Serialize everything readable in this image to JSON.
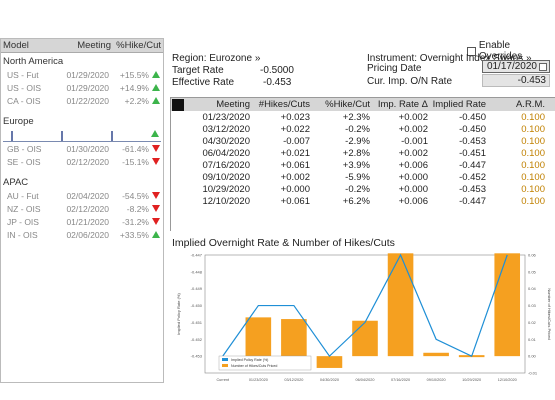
{
  "left_panel": {
    "headers": {
      "model": "Model",
      "meeting": "Meeting",
      "hike": "%Hike/Cut"
    },
    "groups": [
      {
        "name": "North America",
        "rows": [
          {
            "name": "US - Fut",
            "date": "01/29/2020",
            "value": "+15.5%",
            "dir": "up"
          },
          {
            "name": "US - OIS",
            "date": "01/29/2020",
            "value": "+14.9%",
            "dir": "up"
          },
          {
            "name": "CA - OIS",
            "date": "01/22/2020",
            "value": "+2.2%",
            "dir": "up"
          }
        ]
      },
      {
        "name": "Europe",
        "rows": [
          {
            "name": "GB - OIS",
            "date": "01/30/2020",
            "value": "-61.4%",
            "dir": "down"
          },
          {
            "name": "SE - OIS",
            "date": "02/12/2020",
            "value": "-15.1%",
            "dir": "down"
          }
        ]
      },
      {
        "name": "APAC",
        "rows": [
          {
            "name": "AU - Fut",
            "date": "02/04/2020",
            "value": "-54.5%",
            "dir": "down"
          },
          {
            "name": "NZ - OIS",
            "date": "02/12/2020",
            "value": "-8.2%",
            "dir": "down"
          },
          {
            "name": "JP - OIS",
            "date": "01/21/2020",
            "value": "-31.2%",
            "dir": "down"
          },
          {
            "name": "IN - OIS",
            "date": "02/06/2020",
            "value": "+33.5%",
            "dir": "up"
          }
        ]
      }
    ]
  },
  "header": {
    "region": "Region: Eurozone »",
    "target_rate_label": "Target Rate",
    "target_rate_value": "-0.5000",
    "effective_rate_label": "Effective Rate",
    "effective_rate_value": "-0.453",
    "instrument": "Instrument: Overnight Index Swaps »",
    "pricing_date_label": "Pricing Date",
    "pricing_date_value": "01/17/2020",
    "cur_imp_label": "Cur. Imp. O/N Rate",
    "cur_imp_value": "-0.453",
    "enable_overrides": "Enable Overrides"
  },
  "table": {
    "headers": {
      "meeting": "Meeting",
      "hikes_cuts": "#Hikes/Cuts",
      "hike_cut": "%Hike/Cut",
      "imp_rate": "Imp. Rate Δ",
      "implied_rate": "Implied Rate",
      "arm": "A.R.M."
    },
    "rows": [
      {
        "meeting": "01/23/2020",
        "hc": "+0.023",
        "hk": "+2.3%",
        "ir": "+0.002",
        "imp": "-0.450",
        "arm": "0.100"
      },
      {
        "meeting": "03/12/2020",
        "hc": "+0.022",
        "hk": "-0.2%",
        "ir": "+0.002",
        "imp": "-0.450",
        "arm": "0.100"
      },
      {
        "meeting": "04/30/2020",
        "hc": "-0.007",
        "hk": "-2.9%",
        "ir": "-0.001",
        "imp": "-0.453",
        "arm": "0.100"
      },
      {
        "meeting": "06/04/2020",
        "hc": "+0.021",
        "hk": "+2.8%",
        "ir": "+0.002",
        "imp": "-0.451",
        "arm": "0.100"
      },
      {
        "meeting": "07/16/2020",
        "hc": "+0.061",
        "hk": "+3.9%",
        "ir": "+0.006",
        "imp": "-0.447",
        "arm": "0.100"
      },
      {
        "meeting": "09/10/2020",
        "hc": "+0.002",
        "hk": "-5.9%",
        "ir": "+0.000",
        "imp": "-0.452",
        "arm": "0.100"
      },
      {
        "meeting": "10/29/2020",
        "hc": "+0.000",
        "hk": "-0.2%",
        "ir": "+0.000",
        "imp": "-0.453",
        "arm": "0.100"
      },
      {
        "meeting": "12/10/2020",
        "hc": "+0.061",
        "hk": "+6.2%",
        "ir": "+0.006",
        "imp": "-0.447",
        "arm": "0.100"
      }
    ]
  },
  "chart_title": "Implied Overnight Rate & Number of Hikes/Cuts",
  "colors": {
    "bar": "#f5a020",
    "line": "#1f8fd6",
    "up": "#3cb44b",
    "down": "#e02020",
    "arm": "#c08000"
  },
  "chart_data": {
    "type": "bar",
    "categories": [
      "Current",
      "01/23/2020",
      "03/12/2020",
      "04/30/2020",
      "06/04/2020",
      "07/16/2020",
      "09/10/2020",
      "10/29/2020",
      "12/10/2020"
    ],
    "series": [
      {
        "name": "Number of Hikes/Cuts Priced",
        "type": "bar",
        "axis": "right",
        "values": [
          null,
          0.023,
          0.022,
          -0.007,
          0.021,
          0.061,
          0.002,
          0.0,
          0.061
        ]
      },
      {
        "name": "Implied Policy Rate (%)",
        "type": "line",
        "axis": "left",
        "values": [
          -0.453,
          -0.45,
          -0.45,
          -0.453,
          -0.451,
          -0.447,
          -0.452,
          -0.453,
          -0.447
        ]
      }
    ],
    "ylabel": "Implied Policy Rate (%)",
    "y2label": "Number of Hikes/Cuts Priced",
    "ylim": [
      -0.454,
      -0.447
    ],
    "y2lim": [
      -0.01,
      0.06
    ],
    "yticks": [
      "-0.447",
      "-0.448",
      "-0.449",
      "-0.450",
      "-0.451",
      "-0.452",
      "-0.453"
    ],
    "y2ticks": [
      "0.06",
      "0.05",
      "0.04",
      "0.03",
      "0.02",
      "0.01",
      "0.00",
      "-0.01"
    ],
    "legend": "bottom-left"
  }
}
